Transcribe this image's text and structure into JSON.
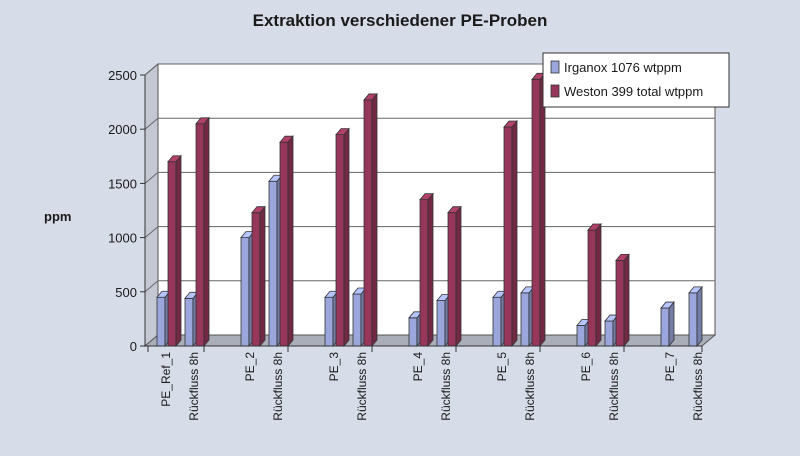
{
  "chart_data": {
    "type": "bar",
    "title": "Extraktion verschiedener PE-Proben",
    "ylabel": "ppm",
    "xlabel": "",
    "ylim": [
      0,
      2500
    ],
    "yticks": [
      0,
      500,
      1000,
      1500,
      2000,
      2500
    ],
    "grid": true,
    "legend_position": "top-right",
    "three_d": true,
    "categories": [
      "PE_Ref_1",
      "Rückfluss 8h",
      "PE_2",
      "Rückfluss 8h",
      "PE_3",
      "Rückfluss 8h",
      "PE_4",
      "Rückfluss 8h",
      "PE_5",
      "Rückfluss 8h",
      "PE_6",
      "Rückfluss 8h",
      "PE_7",
      "Rückfluss 8h"
    ],
    "series": [
      {
        "name": "Irganox 1076 wtppm",
        "color": "#9aa6dc",
        "values": [
          450,
          440,
          1000,
          1520,
          450,
          480,
          260,
          420,
          450,
          490,
          190,
          230,
          350,
          490
        ]
      },
      {
        "name": "Weston 399 total wtppm",
        "color": "#96365a",
        "values": [
          1700,
          2050,
          1230,
          1880,
          1950,
          2270,
          1350,
          1230,
          2020,
          2460,
          1070,
          790,
          null,
          null
        ]
      }
    ]
  }
}
